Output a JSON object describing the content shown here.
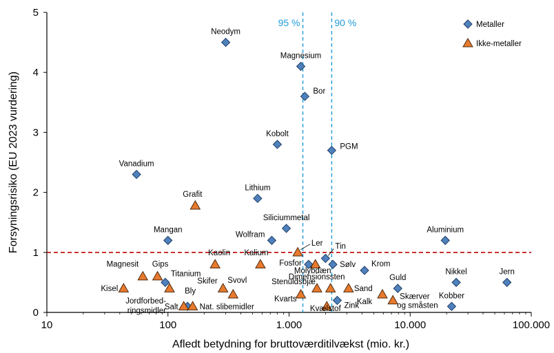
{
  "chart_data": {
    "type": "scatter",
    "xlabel": "Afledt betydning for bruttoværditilvækst (mio. kr.)",
    "ylabel": "Forsyningsrisiko (EU 2023 vurdering)",
    "xscale": "log",
    "xlim": [
      10,
      100000
    ],
    "ylim": [
      0,
      5
    ],
    "x_ticks": [
      10,
      100,
      1000,
      10000,
      100000
    ],
    "x_tick_labels": [
      "10",
      "100",
      "1.000",
      "10.000",
      "100.000"
    ],
    "y_ticks": [
      0,
      1,
      2,
      3,
      4,
      5
    ],
    "y_tick_labels": [
      "0",
      "1",
      "2",
      "3",
      "4",
      "5"
    ],
    "grid": false,
    "legend": "top-right",
    "colors": {
      "metal": "#4f81bd",
      "nonmetal": "#e87a2e",
      "threshold": "#c00000",
      "percentile": "#1f9bd9"
    },
    "reference_lines": [
      {
        "orientation": "horizontal",
        "value": 1,
        "style": "dashed",
        "color": "#c00000"
      },
      {
        "orientation": "vertical",
        "value": 1300,
        "label": "95 %",
        "style": "dashed",
        "color": "#1f9bd9"
      },
      {
        "orientation": "vertical",
        "value": 2250,
        "label": "90 %",
        "style": "dashed",
        "color": "#1f9bd9"
      }
    ],
    "series": [
      {
        "name": "Metaller",
        "marker": "diamond",
        "points": [
          {
            "label": "Neodym",
            "x": 300,
            "y": 4.5
          },
          {
            "label": "Magnesium",
            "x": 1250,
            "y": 4.1
          },
          {
            "label": "Bor",
            "x": 1350,
            "y": 3.6
          },
          {
            "label": "Kobolt",
            "x": 800,
            "y": 2.8
          },
          {
            "label": "PGM",
            "x": 2250,
            "y": 2.7
          },
          {
            "label": "Vanadium",
            "x": 55,
            "y": 2.3
          },
          {
            "label": "Lithium",
            "x": 550,
            "y": 1.9
          },
          {
            "label": "Siliciummetal",
            "x": 950,
            "y": 1.4
          },
          {
            "label": "Mangan",
            "x": 100,
            "y": 1.2
          },
          {
            "label": "Wolfram",
            "x": 720,
            "y": 1.2
          },
          {
            "label": "Aluminium",
            "x": 19500,
            "y": 1.2
          },
          {
            "label": "Tin",
            "x": 2000,
            "y": 0.9
          },
          {
            "label": "Fosfor",
            "x": 1450,
            "y": 0.8
          },
          {
            "label": "Sølv",
            "x": 2300,
            "y": 0.8
          },
          {
            "label": "Krom",
            "x": 4200,
            "y": 0.7
          },
          {
            "label": "Titanium",
            "x": 95,
            "y": 0.5
          },
          {
            "label": "Nikkel",
            "x": 24000,
            "y": 0.5
          },
          {
            "label": "Jern",
            "x": 63000,
            "y": 0.5
          },
          {
            "label": "Guld",
            "x": 7900,
            "y": 0.4
          },
          {
            "label": "Zink",
            "x": 2500,
            "y": 0.2
          },
          {
            "label": "Bly",
            "x": 145,
            "y": 0.1
          },
          {
            "label": "Kobber",
            "x": 22000,
            "y": 0.1
          }
        ]
      },
      {
        "name": "Ikke-metaller",
        "marker": "triangle",
        "points": [
          {
            "label": "Grafit",
            "x": 168,
            "y": 1.78
          },
          {
            "label": "Kaolin",
            "x": 245,
            "y": 0.8
          },
          {
            "label": "Kalium",
            "x": 580,
            "y": 0.8
          },
          {
            "label": "Ler",
            "x": 1180,
            "y": 1.0
          },
          {
            "label": "Molybdæn",
            "x": 1650,
            "y": 0.8
          },
          {
            "label": "Magnesit",
            "x": 62,
            "y": 0.6
          },
          {
            "label": "Gips",
            "x": 82,
            "y": 0.6
          },
          {
            "label": "Kisel",
            "x": 43,
            "y": 0.4
          },
          {
            "label": "Jordforbedringsmidler",
            "x": 103,
            "y": 0.4
          },
          {
            "label": "Skifer",
            "x": 285,
            "y": 0.4
          },
          {
            "label": "Svovl",
            "x": 345,
            "y": 0.3
          },
          {
            "label": "Stenuldsbjæ",
            "x": 1700,
            "y": 0.4
          },
          {
            "label": "Dimensionssten",
            "x": 2200,
            "y": 0.4
          },
          {
            "label": "Sand",
            "x": 3100,
            "y": 0.4
          },
          {
            "label": "Kvarts",
            "x": 1250,
            "y": 0.3
          },
          {
            "label": "Kalk",
            "x": 5900,
            "y": 0.3
          },
          {
            "label": "Skærver og småsten",
            "x": 7200,
            "y": 0.2
          },
          {
            "label": "Salt",
            "x": 135,
            "y": 0.1
          },
          {
            "label": "Nat. slibemidler",
            "x": 160,
            "y": 0.1
          },
          {
            "label": "Kvælstof",
            "x": 2050,
            "y": 0.1
          }
        ]
      }
    ]
  },
  "legend": {
    "items": [
      {
        "label": "Metaller"
      },
      {
        "label": "Ikke-metaller"
      }
    ]
  }
}
